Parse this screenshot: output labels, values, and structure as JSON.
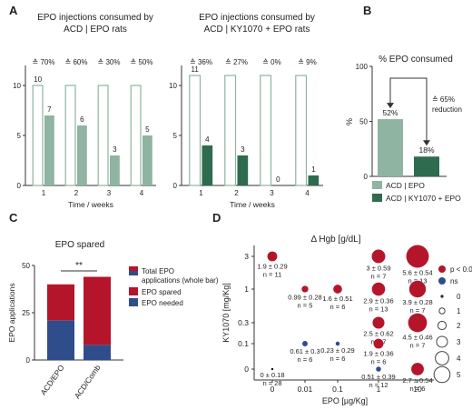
{
  "colors": {
    "light_green": "#8fb4a1",
    "dark_green": "#2f6b4f",
    "red": "#b5152b",
    "blue": "#2f4d8a",
    "axis": "#333333",
    "gray_legend": "#444444"
  },
  "chart_data": [
    {
      "panel": "A",
      "type": "bar",
      "title": "EPO injections consumed by ACD | EPO rats",
      "xlabel": "Time / weeks",
      "categories": [
        "1",
        "2",
        "3",
        "4"
      ],
      "ylim": [
        0,
        12
      ],
      "yticks": [
        0,
        5,
        10
      ],
      "series": [
        {
          "name": "EPO offered",
          "values": [
            10,
            10,
            10,
            10
          ],
          "labels": [
            "10",
            "",
            "",
            ""
          ],
          "style": "outline"
        },
        {
          "name": "EPO consumed",
          "values": [
            7,
            6,
            3,
            5
          ],
          "labels": [
            "7",
            "6",
            "3",
            "5"
          ],
          "style": "light"
        }
      ],
      "annotations": [
        "≙ 70%",
        "≙ 60%",
        "≙ 30%",
        "≙ 50%"
      ]
    },
    {
      "panel": "A",
      "type": "bar",
      "title": "EPO injections consumed by ACD | KY1070 + EPO rats",
      "xlabel": "Time / weeks",
      "categories": [
        "1",
        "2",
        "3",
        "4"
      ],
      "ylim": [
        0,
        12
      ],
      "yticks": [
        0,
        5,
        10
      ],
      "series": [
        {
          "name": "EPO offered",
          "values": [
            11,
            11,
            11,
            11
          ],
          "labels": [
            "11",
            "",
            "",
            ""
          ],
          "style": "outline"
        },
        {
          "name": "EPO consumed",
          "values": [
            4,
            3,
            0,
            1
          ],
          "labels": [
            "4",
            "3",
            "0",
            "1"
          ],
          "style": "dark"
        }
      ],
      "annotations": [
        "≙ 36%",
        "≙ 27%",
        "≙ 0%",
        "≙ 9%"
      ]
    },
    {
      "panel": "B",
      "type": "bar",
      "title": "% EPO consumed",
      "ylabel": "%",
      "ylim": [
        0,
        100
      ],
      "yticks": [
        0,
        50,
        100
      ],
      "categories": [
        "ACD | EPO",
        "ACD | KY1070 + EPO"
      ],
      "values": [
        52,
        18
      ],
      "labels": [
        "52%",
        "18%"
      ],
      "annotation": "≙ 65% reduction",
      "legend": [
        "ACD | EPO",
        "ACD | KY1070 + EPO"
      ]
    },
    {
      "panel": "C",
      "type": "bar",
      "title": "EPO spared",
      "ylabel": "EPO applications",
      "ylim": [
        0,
        50
      ],
      "yticks": [
        0,
        25,
        50
      ],
      "categories": [
        "ACD/EPO",
        "ACD/Comb"
      ],
      "series": [
        {
          "name": "EPO needed",
          "values": [
            21,
            8
          ]
        },
        {
          "name": "EPO spared",
          "values": [
            19,
            36
          ]
        }
      ],
      "significance": "**",
      "legend": [
        "Total EPO applications (whole bar)",
        "EPO spared",
        "EPO needed"
      ]
    },
    {
      "panel": "D",
      "type": "scatter",
      "title": "Δ Hgb [g/dL]",
      "xlabel": "EPO [µg/Kg]",
      "ylabel": "KY1070 [mg/Kg]",
      "x_ticks": [
        "0",
        "0.01",
        "0.1",
        "1",
        "10"
      ],
      "y_ticks": [
        "0",
        "0.1",
        "0.3",
        "1",
        "3"
      ],
      "points": [
        {
          "x": "0",
          "y": "3",
          "value": "1.9 ± 0.29",
          "n": "n = 11",
          "sig": true,
          "size": 1.9
        },
        {
          "x": "0.01",
          "y": "1",
          "value": "0.99 ± 0.28",
          "n": "n = 5",
          "sig": true,
          "size": 0.99
        },
        {
          "x": "0.1",
          "y": "1",
          "value": "1.6 ± 0.51",
          "n": "n = 6",
          "sig": true,
          "size": 1.6
        },
        {
          "x": "1",
          "y": "3",
          "value": "3 ± 0.59",
          "n": "n = 7",
          "sig": true,
          "size": 3
        },
        {
          "x": "1",
          "y": "1",
          "value": "2.9 ± 0.36",
          "n": "n = 13",
          "sig": true,
          "size": 2.9
        },
        {
          "x": "10",
          "y": "3",
          "value": "5.6 ± 0.54",
          "n": "n = 13",
          "sig": true,
          "size": 5.6
        },
        {
          "x": "10",
          "y": "1",
          "value": "3.9 ± 0.28",
          "n": "n = 7",
          "sig": true,
          "size": 3.9
        },
        {
          "x": "1",
          "y": "0.3",
          "value": "2.5 ± 0.62",
          "n": "n = 7",
          "sig": true,
          "size": 2.5
        },
        {
          "x": "10",
          "y": "0.3",
          "value": "4.5 ± 0.46",
          "n": "n = 7",
          "sig": true,
          "size": 4.5
        },
        {
          "x": "0.01",
          "y": "0.1",
          "value": "0.61 ± 0.3",
          "n": "n = 6",
          "sig": false,
          "size": 0.61
        },
        {
          "x": "0.1",
          "y": "0.1",
          "value": "0.23 ± 0.29",
          "n": "n = 6",
          "sig": false,
          "size": 0.23
        },
        {
          "x": "1",
          "y": "0.1",
          "value": "1.9 ± 0.36",
          "n": "n = 6",
          "sig": true,
          "size": 1.9
        },
        {
          "x": "0",
          "y": "0",
          "value": "0 ± 0.18",
          "n": "n = 28",
          "sig": false,
          "size": 0
        },
        {
          "x": "1",
          "y": "0",
          "value": "0.51 ± 0.39",
          "n": "n = 12",
          "sig": false,
          "size": 0.51
        },
        {
          "x": "10",
          "y": "0",
          "value": "2.7 ± 0.54",
          "n": "n = 6",
          "sig": true,
          "size": 2.7
        }
      ],
      "legend": {
        "sig_labels": [
          "p < 0.05",
          "ns"
        ],
        "size_labels": [
          "0",
          "1",
          "2",
          "3",
          "4",
          "5"
        ]
      }
    }
  ],
  "panel_labels": [
    "A",
    "B",
    "C",
    "D"
  ]
}
